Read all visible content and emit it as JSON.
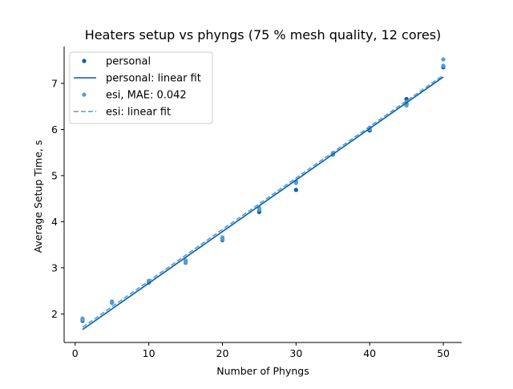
{
  "chart_data": {
    "type": "scatter",
    "title": "Heaters setup vs phyngs (75 % mesh quality, 12 cores)",
    "xlabel": "Number of Phyngs",
    "ylabel": "Average Setup Time, s",
    "xlim": [
      -1.5,
      52.5
    ],
    "ylim": [
      1.38,
      7.8
    ],
    "x_ticks": [
      0,
      10,
      20,
      30,
      40,
      50
    ],
    "y_ticks": [
      2,
      3,
      4,
      5,
      6,
      7
    ],
    "grid": false,
    "legend_position": "top-left",
    "series": [
      {
        "name": "personal",
        "kind": "scatter",
        "color": "#005ea8",
        "points": [
          [
            1,
            1.85
          ],
          [
            1,
            1.87
          ],
          [
            5,
            2.24
          ],
          [
            5,
            2.26
          ],
          [
            10,
            2.68
          ],
          [
            10,
            2.7
          ],
          [
            15,
            3.11
          ],
          [
            15,
            3.14
          ],
          [
            20,
            3.6
          ],
          [
            20,
            3.64
          ],
          [
            25,
            4.21
          ],
          [
            25,
            4.25
          ],
          [
            30,
            4.69
          ],
          [
            30,
            4.87
          ],
          [
            35,
            5.45
          ],
          [
            35,
            5.47
          ],
          [
            40,
            5.98
          ],
          [
            40,
            6.01
          ],
          [
            45,
            6.55
          ],
          [
            45,
            6.66
          ],
          [
            50,
            7.35
          ],
          [
            50,
            7.38
          ]
        ]
      },
      {
        "name": "personal: linear fit",
        "kind": "line",
        "color": "#005ea8",
        "dashed": false,
        "points": [
          [
            1,
            1.66
          ],
          [
            50,
            7.14
          ]
        ]
      },
      {
        "name": "esi, MAE: 0.042",
        "kind": "scatter",
        "color": "#5a9bd0",
        "points": [
          [
            1,
            1.9
          ],
          [
            1,
            1.87
          ],
          [
            5,
            2.27
          ],
          [
            5,
            2.24
          ],
          [
            10,
            2.72
          ],
          [
            10,
            2.69
          ],
          [
            15,
            3.16
          ],
          [
            15,
            3.12
          ],
          [
            20,
            3.66
          ],
          [
            20,
            3.62
          ],
          [
            25,
            4.3
          ],
          [
            25,
            4.26
          ],
          [
            30,
            4.84
          ],
          [
            30,
            4.87
          ],
          [
            35,
            5.49
          ],
          [
            35,
            5.45
          ],
          [
            40,
            6.04
          ],
          [
            40,
            6.01
          ],
          [
            45,
            6.52
          ],
          [
            45,
            6.6
          ],
          [
            50,
            7.52
          ],
          [
            50,
            7.38
          ]
        ]
      },
      {
        "name": "esi: linear fit",
        "kind": "line",
        "color": "#5a9bd0",
        "dashed": true,
        "points": [
          [
            1,
            1.71
          ],
          [
            50,
            7.18
          ]
        ]
      }
    ]
  }
}
